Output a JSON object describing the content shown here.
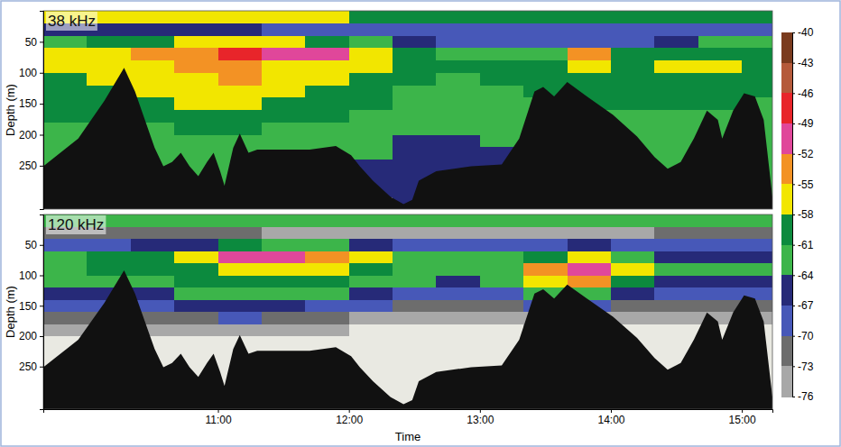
{
  "chart_data": [
    {
      "type": "heatmap",
      "title": "38 kHz",
      "ylabel": "Depth (m)",
      "xlim": [
        580,
        914
      ],
      "ylim": [
        0,
        320
      ],
      "yticks": [
        50,
        100,
        150,
        200,
        250
      ],
      "tick_labels": "y",
      "x": [
        580,
        600,
        620,
        640,
        660,
        680,
        700,
        720,
        740,
        760,
        780,
        800,
        820,
        840,
        860,
        880,
        900
      ],
      "y": [
        0,
        20,
        40,
        60,
        80,
        100,
        120,
        140,
        160,
        180,
        200,
        220,
        240,
        260,
        280,
        300
      ],
      "values": [
        [
          -58,
          -58,
          -58,
          -58,
          -58,
          -58,
          -58,
          -60,
          -60,
          -60,
          -60,
          -61,
          -61,
          -61,
          -60,
          -60,
          -60
        ],
        [
          -66,
          -66,
          -67,
          -67,
          -67,
          -68,
          -68,
          -68,
          -69,
          -69,
          -70,
          -70,
          -70,
          -70,
          -69,
          -68,
          -68
        ],
        [
          -62,
          -60,
          -59,
          -58,
          -57,
          -58,
          -60,
          -63,
          -66,
          -68,
          -69,
          -70,
          -68,
          -69,
          -66,
          -64,
          -64
        ],
        [
          -58,
          -56,
          -55,
          -54,
          -48,
          -50,
          -52,
          -56,
          -60,
          -62,
          -62,
          -62,
          -55,
          -60,
          -59,
          -59,
          -60
        ],
        [
          -57,
          -56,
          -56,
          -55,
          -54,
          -56,
          -57,
          -58,
          -60,
          -61,
          -60,
          -60,
          -58,
          -59,
          -58,
          -58,
          -60
        ],
        [
          -59,
          -58,
          -57,
          -56,
          -55,
          -57,
          -58,
          -59,
          -61,
          -62,
          -61,
          -60,
          -59,
          -59,
          -59,
          -59,
          -61
        ],
        [
          -60,
          -59,
          -58,
          -57,
          -56,
          -58,
          -59,
          -60,
          -62,
          -63,
          -62,
          -61,
          -60,
          -60,
          -60,
          -60,
          -61
        ],
        [
          -61,
          -60,
          -60,
          -58,
          -58,
          -59,
          -60,
          -61,
          -62,
          -63,
          -63,
          -62,
          -61,
          -61,
          -61,
          -61,
          -62
        ],
        [
          -61,
          -61,
          -61,
          -60,
          -60,
          -61,
          -61,
          -62,
          -63,
          -64,
          -63,
          -63,
          -62,
          -62,
          -62,
          -62,
          -62
        ],
        [
          -62,
          -62,
          -62,
          -61,
          -61,
          -62,
          -62,
          -63,
          -64,
          -64,
          -64,
          -63,
          null,
          -62,
          -63,
          -62,
          -62
        ],
        [
          -63,
          null,
          -63,
          -62,
          -62,
          -63,
          -63,
          -64,
          -65,
          -65,
          -64,
          null,
          null,
          -63,
          -63,
          -63,
          -63
        ],
        [
          -63,
          null,
          -63,
          -63,
          -63,
          -63,
          -63,
          -64,
          -65,
          -65,
          -65,
          null,
          null,
          -64,
          -64,
          null,
          -63
        ],
        [
          -64,
          null,
          -64,
          -63,
          -63,
          null,
          null,
          -65,
          -66,
          -66,
          -65,
          null,
          null,
          null,
          -64,
          null,
          -64
        ],
        [
          null,
          null,
          null,
          -64,
          -64,
          null,
          null,
          -65,
          -66,
          null,
          null,
          null,
          null,
          null,
          null,
          null,
          -64
        ],
        [
          null,
          null,
          null,
          null,
          -64,
          null,
          null,
          -66,
          -66,
          null,
          null,
          null,
          null,
          null,
          null,
          null,
          -64
        ],
        [
          null,
          null,
          null,
          null,
          null,
          null,
          null,
          null,
          -66,
          null,
          null,
          null,
          null,
          null,
          null,
          null,
          null
        ]
      ],
      "seabed": {
        "x": [
          580,
          596,
          608,
          617,
          622,
          631,
          635,
          639,
          643,
          647,
          651,
          655,
          658,
          661,
          663,
          667,
          670,
          674,
          678,
          686,
          702,
          714,
          721,
          725,
          731,
          739,
          745,
          749,
          752,
          760,
          776,
          790,
          798,
          805,
          809,
          814,
          820,
          829,
          841,
          852,
          860,
          866,
          872,
          878,
          884,
          889,
          891,
          896,
          901,
          906,
          910,
          914
        ],
        "values": [
          251,
          206,
          145,
          92,
          130,
          221,
          251,
          244,
          229,
          251,
          267,
          244,
          229,
          259,
          282,
          221,
          198,
          229,
          224,
          224,
          224,
          218,
          233,
          251,
          274,
          300,
          312,
          305,
          274,
          259,
          251,
          248,
          206,
          130,
          123,
          138,
          115,
          138,
          168,
          203,
          236,
          255,
          244,
          206,
          161,
          176,
          206,
          161,
          133,
          138,
          176,
          300
        ]
      }
    },
    {
      "type": "heatmap",
      "title": "120 kHz",
      "ylabel": "Depth (m)",
      "xlabel": "Time",
      "xlim": [
        580,
        914
      ],
      "ylim": [
        0,
        320
      ],
      "yticks": [
        50,
        100,
        150,
        200,
        250
      ],
      "xticks": [
        {
          "value": 660,
          "label": "11:00"
        },
        {
          "value": 720,
          "label": "12:00"
        },
        {
          "value": 780,
          "label": "13:00"
        },
        {
          "value": 840,
          "label": "14:00"
        },
        {
          "value": 900,
          "label": "15:00"
        }
      ],
      "x": [
        580,
        600,
        620,
        640,
        660,
        680,
        700,
        720,
        740,
        760,
        780,
        800,
        820,
        840,
        860,
        880,
        900
      ],
      "y": [
        0,
        20,
        40,
        60,
        80,
        100,
        120,
        140,
        160,
        180,
        200,
        220,
        240,
        260,
        280,
        300
      ],
      "values": [
        [
          -62,
          -62,
          -62,
          -62,
          -62,
          -62,
          -63,
          -63,
          -64,
          -64,
          -64,
          -64,
          -64,
          -64,
          -64,
          -63,
          -63
        ],
        [
          -72,
          -72,
          -73,
          -73,
          -73,
          -74,
          -74,
          -74,
          -74,
          -74,
          -74,
          -74,
          -74,
          -74,
          -73,
          -73,
          -73
        ],
        [
          -68,
          -68,
          -67,
          -66,
          -60,
          -62,
          -64,
          -67,
          -68,
          -70,
          -70,
          -70,
          -66,
          -70,
          -70,
          -70,
          -70
        ],
        [
          -62,
          -61,
          -60,
          -58,
          -50,
          -51,
          -54,
          -58,
          -62,
          -63,
          -62,
          -60,
          -56,
          -62,
          -66,
          -66,
          -66
        ],
        [
          -62,
          -61,
          -60,
          -59,
          -57,
          -58,
          -58,
          -60,
          -62,
          -63,
          -62,
          -55,
          -52,
          -58,
          -64,
          -64,
          -64
        ],
        [
          -64,
          -63,
          -62,
          -61,
          -59,
          -60,
          -61,
          -62,
          -64,
          -65,
          -64,
          -58,
          -55,
          -60,
          -66,
          -66,
          -66
        ],
        [
          -67,
          -66,
          -65,
          -64,
          -62,
          -63,
          -64,
          -66,
          -68,
          -69,
          -68,
          -64,
          -62,
          -66,
          -70,
          -70,
          -70
        ],
        [
          -70,
          -69,
          -68,
          -67,
          -66,
          -67,
          -68,
          -70,
          -72,
          -73,
          -72,
          -70,
          -70,
          -72,
          -73,
          -73,
          -73
        ],
        [
          -73,
          -72,
          -71,
          -71,
          -70,
          -72,
          -73,
          -74,
          -75,
          -76,
          -75,
          -74,
          -74,
          -75,
          -76,
          -76,
          -76
        ],
        [
          -75,
          -75,
          -75,
          -74,
          -74,
          -75,
          -76,
          -77,
          -78,
          -78,
          -77,
          -76,
          null,
          -77,
          -77,
          -77,
          -77
        ],
        [
          -78,
          null,
          -78,
          -78,
          -78,
          -78,
          -78,
          -79,
          -80,
          -80,
          -79,
          null,
          null,
          -79,
          -79,
          -79,
          -79
        ],
        [
          -79,
          null,
          -79,
          -79,
          -79,
          -79,
          -79,
          -80,
          -80,
          -80,
          -80,
          null,
          null,
          -80,
          -80,
          null,
          -80
        ],
        [
          -80,
          null,
          -80,
          -80,
          -80,
          null,
          null,
          -80,
          -80,
          -80,
          -80,
          null,
          null,
          null,
          -80,
          null,
          -80
        ],
        [
          null,
          null,
          null,
          -80,
          -80,
          null,
          null,
          -80,
          -80,
          null,
          null,
          null,
          null,
          null,
          null,
          null,
          -80
        ],
        [
          null,
          null,
          null,
          null,
          -80,
          null,
          null,
          -80,
          -80,
          null,
          null,
          null,
          null,
          null,
          null,
          null,
          -80
        ],
        [
          null,
          null,
          null,
          null,
          null,
          null,
          null,
          null,
          -80,
          null,
          null,
          null,
          null,
          null,
          null,
          null,
          null
        ]
      ],
      "seabed": {
        "x": [
          580,
          596,
          608,
          617,
          622,
          631,
          635,
          639,
          643,
          647,
          651,
          655,
          658,
          661,
          663,
          667,
          670,
          674,
          678,
          686,
          702,
          714,
          721,
          725,
          731,
          739,
          745,
          749,
          752,
          760,
          776,
          790,
          798,
          805,
          809,
          814,
          820,
          829,
          841,
          852,
          860,
          866,
          872,
          878,
          884,
          889,
          891,
          896,
          901,
          906,
          910,
          914
        ],
        "values": [
          251,
          206,
          145,
          92,
          130,
          221,
          251,
          244,
          229,
          251,
          267,
          244,
          229,
          259,
          282,
          221,
          198,
          229,
          224,
          224,
          224,
          218,
          233,
          251,
          274,
          300,
          312,
          305,
          274,
          259,
          251,
          248,
          206,
          130,
          123,
          138,
          115,
          138,
          168,
          203,
          236,
          255,
          244,
          206,
          161,
          176,
          206,
          161,
          133,
          138,
          176,
          300
        ]
      }
    },
    {
      "type": "colorbar",
      "ylim": [
        -76,
        -40
      ],
      "yticks": [
        -40,
        -43,
        -46,
        -49,
        -52,
        -55,
        -58,
        -61,
        -64,
        -67,
        -70,
        -73,
        -76
      ],
      "colors": [
        "#7a3b1e",
        "#b55a3a",
        "#e8252a",
        "#e0479a",
        "#f39224",
        "#f2e600",
        "#0c8a3e",
        "#3cb54a",
        "#262a78",
        "#4758b8",
        "#6d6d6d",
        "#a8a8a8"
      ]
    }
  ]
}
